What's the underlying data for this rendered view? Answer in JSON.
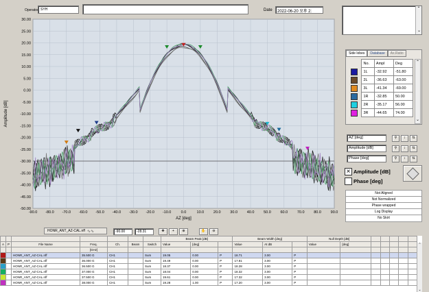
{
  "header": {
    "operator_label": "Operator",
    "operator_value": "SYH",
    "title_value": "",
    "date_label": "Date",
    "date_value": "2022-06-20 오후 2:"
  },
  "plot": {
    "bg": "#d9e0e8",
    "y_label": "Amplitude [dB]",
    "x_label": "AZ [deg]"
  },
  "chart_data": {
    "type": "line",
    "xlabel": "AZ [deg]",
    "ylabel": "Amplitude [dB]",
    "xlim": [
      -90,
      90
    ],
    "ylim": [
      -50,
      30
    ],
    "x_ticks": [
      "-90.0",
      "-80.0",
      "-70.0",
      "-60.0",
      "-50.0",
      "-40.0",
      "-30.0",
      "-20.0",
      "-10.0",
      "0.0",
      "10.0",
      "20.0",
      "30.0",
      "40.0",
      "50.0",
      "60.0",
      "70.0",
      "80.0",
      "90.0"
    ],
    "y_ticks": [
      "30.00",
      "25.00",
      "20.00",
      "15.00",
      "10.00",
      "5.00",
      "0.00",
      "-5.00",
      "-10.00",
      "-15.00",
      "-20.00",
      "-25.00",
      "-30.00",
      "-35.00",
      "-40.00",
      "-45.00",
      "-50.00"
    ],
    "reference_line": -30,
    "series": [
      {
        "color": "#1a1a1a",
        "peak": 19.05
      },
      {
        "color": "#2e3133",
        "peak": 19.49
      },
      {
        "color": "#3a3c3a",
        "peak": 18.37
      },
      {
        "color": "#7a7a7a",
        "peak": 18.04
      },
      {
        "color": "#4fa56a",
        "peak": 19.61
      },
      {
        "color": "#a284c4",
        "peak": 19.28
      }
    ],
    "markers": [
      {
        "x": 0,
        "y": 19.05,
        "color": "#c02020"
      },
      {
        "x": -10,
        "y": 18.1,
        "color": "#1a8a2a"
      },
      {
        "x": 10,
        "y": 18.1,
        "color": "#1a8a2a"
      },
      {
        "x": -63,
        "y": -17.3,
        "color": "#111111"
      },
      {
        "x": -52,
        "y": -13.9,
        "color": "#1d3b8a"
      },
      {
        "x": -70,
        "y": -22.2,
        "color": "#d07a10"
      },
      {
        "x": 50,
        "y": -14.3,
        "color": "#21b5cc"
      },
      {
        "x": 57,
        "y": -16.8,
        "color": "#1a6a9a"
      },
      {
        "x": 74,
        "y": -24.8,
        "color": "#c020c0"
      }
    ]
  },
  "side_tabs": [
    "Side lobes",
    "Database",
    "Ax.Ratio"
  ],
  "lobes": {
    "headers": [
      "No.",
      "Ampl",
      "Deg"
    ],
    "rows": [
      {
        "no": "1L",
        "ampl": "-32.92",
        "deg": "-51.80",
        "color": "#1a1aa0"
      },
      {
        "no": "2L",
        "ampl": "-36.63",
        "deg": "-63.00",
        "color": "#6a4a2a"
      },
      {
        "no": "3L",
        "ampl": "-41.34",
        "deg": "-69.00",
        "color": "#e08a20"
      },
      {
        "no": "1R",
        "ampl": "-32.85",
        "deg": "50.00",
        "color": "#2a6aa0"
      },
      {
        "no": "2R",
        "ampl": "-35.17",
        "deg": "56.00",
        "color": "#20d0e0"
      },
      {
        "no": "3R",
        "ampl": "-44.65",
        "deg": "74.00",
        "color": "#e020e0"
      }
    ]
  },
  "cursors": [
    {
      "label": "AZ [deg]"
    },
    {
      "label": "Amplitude [dB]"
    },
    {
      "label": "Phase [deg]"
    }
  ],
  "mode": {
    "amplitude": "Amplitude [dB]",
    "phase": "Phase [deg]"
  },
  "status": [
    "Not Aligned",
    "Not Normalized",
    "Phase wrapped",
    "Log Display",
    "No Skirt"
  ],
  "bottom_bar": {
    "file_name": "HONR_ANT_AZ-CAL.nff",
    "value1": "-90.00",
    "value2": "-28.31"
  },
  "file_table": {
    "group_headers": {
      "beam_peak": "Beam Peak [dB]",
      "beam_width": "Beam Width [deg]",
      "null_depth": "Null Depth [dB]"
    },
    "headers": {
      "a": "A",
      "p": "P",
      "file": "File Name",
      "freq": "Freq.",
      "freq_unit": "[GHz]",
      "ch": "Ch.",
      "beam": "Beam",
      "switch": "Switch",
      "value": "Value",
      "deg": "[deg]",
      "value2": "Value",
      "at_db": "At dB",
      "value3": "Value",
      "deg3": "[deg]"
    },
    "rows": [
      {
        "color": "#b01818",
        "file": "HONR_ANT_AZ-CAL.nff",
        "freq": "35.500 G",
        "ch": "CH1",
        "sw": "Sum",
        "peak": "19.05",
        "pdeg": "0.00",
        "pf": "P",
        "bw": "18.71",
        "atdb": "3.00",
        "bwf": "P"
      },
      {
        "color": "#5a3a18",
        "file": "HONR_ANT_AZ-CAL.nff",
        "freq": "36.000 G",
        "ch": "CH1",
        "sw": "Sum",
        "peak": "19.49",
        "pdeg": "0.00",
        "pf": "P",
        "bw": "17.81",
        "atdb": "3.00",
        "bwf": "P"
      },
      {
        "color": "#2aa0c8",
        "file": "HONR_ANT_AZ-CAL.nff",
        "freq": "36.500 G",
        "ch": "CH1",
        "sw": "Sum",
        "peak": "18.37",
        "pdeg": "0.00",
        "pf": "P",
        "bw": "18.28",
        "atdb": "3.00",
        "bwf": "P"
      },
      {
        "color": "#16b060",
        "file": "HONR_ANT_AZ-CAL.nff",
        "freq": "37.000 G",
        "ch": "CH1",
        "sw": "Sum",
        "peak": "18.04",
        "pdeg": "0.00",
        "pf": "P",
        "bw": "18.32",
        "atdb": "3.00",
        "bwf": "P"
      },
      {
        "color": "#c8e830",
        "file": "HONR_ANT_AZ-CAL.nff",
        "freq": "37.500 G",
        "ch": "CH1",
        "sw": "Sum",
        "peak": "19.61",
        "pdeg": "0.00",
        "pf": "P",
        "bw": "17.32",
        "atdb": "3.00",
        "bwf": "P"
      },
      {
        "color": "#c030c0",
        "file": "HONR_ANT_AZ-CAL.nff",
        "freq": "38.000 G",
        "ch": "CH1",
        "sw": "Sum",
        "peak": "19.28",
        "pdeg": "1.00",
        "pf": "P",
        "bw": "17.20",
        "atdb": "3.00",
        "bwf": "P"
      }
    ]
  }
}
